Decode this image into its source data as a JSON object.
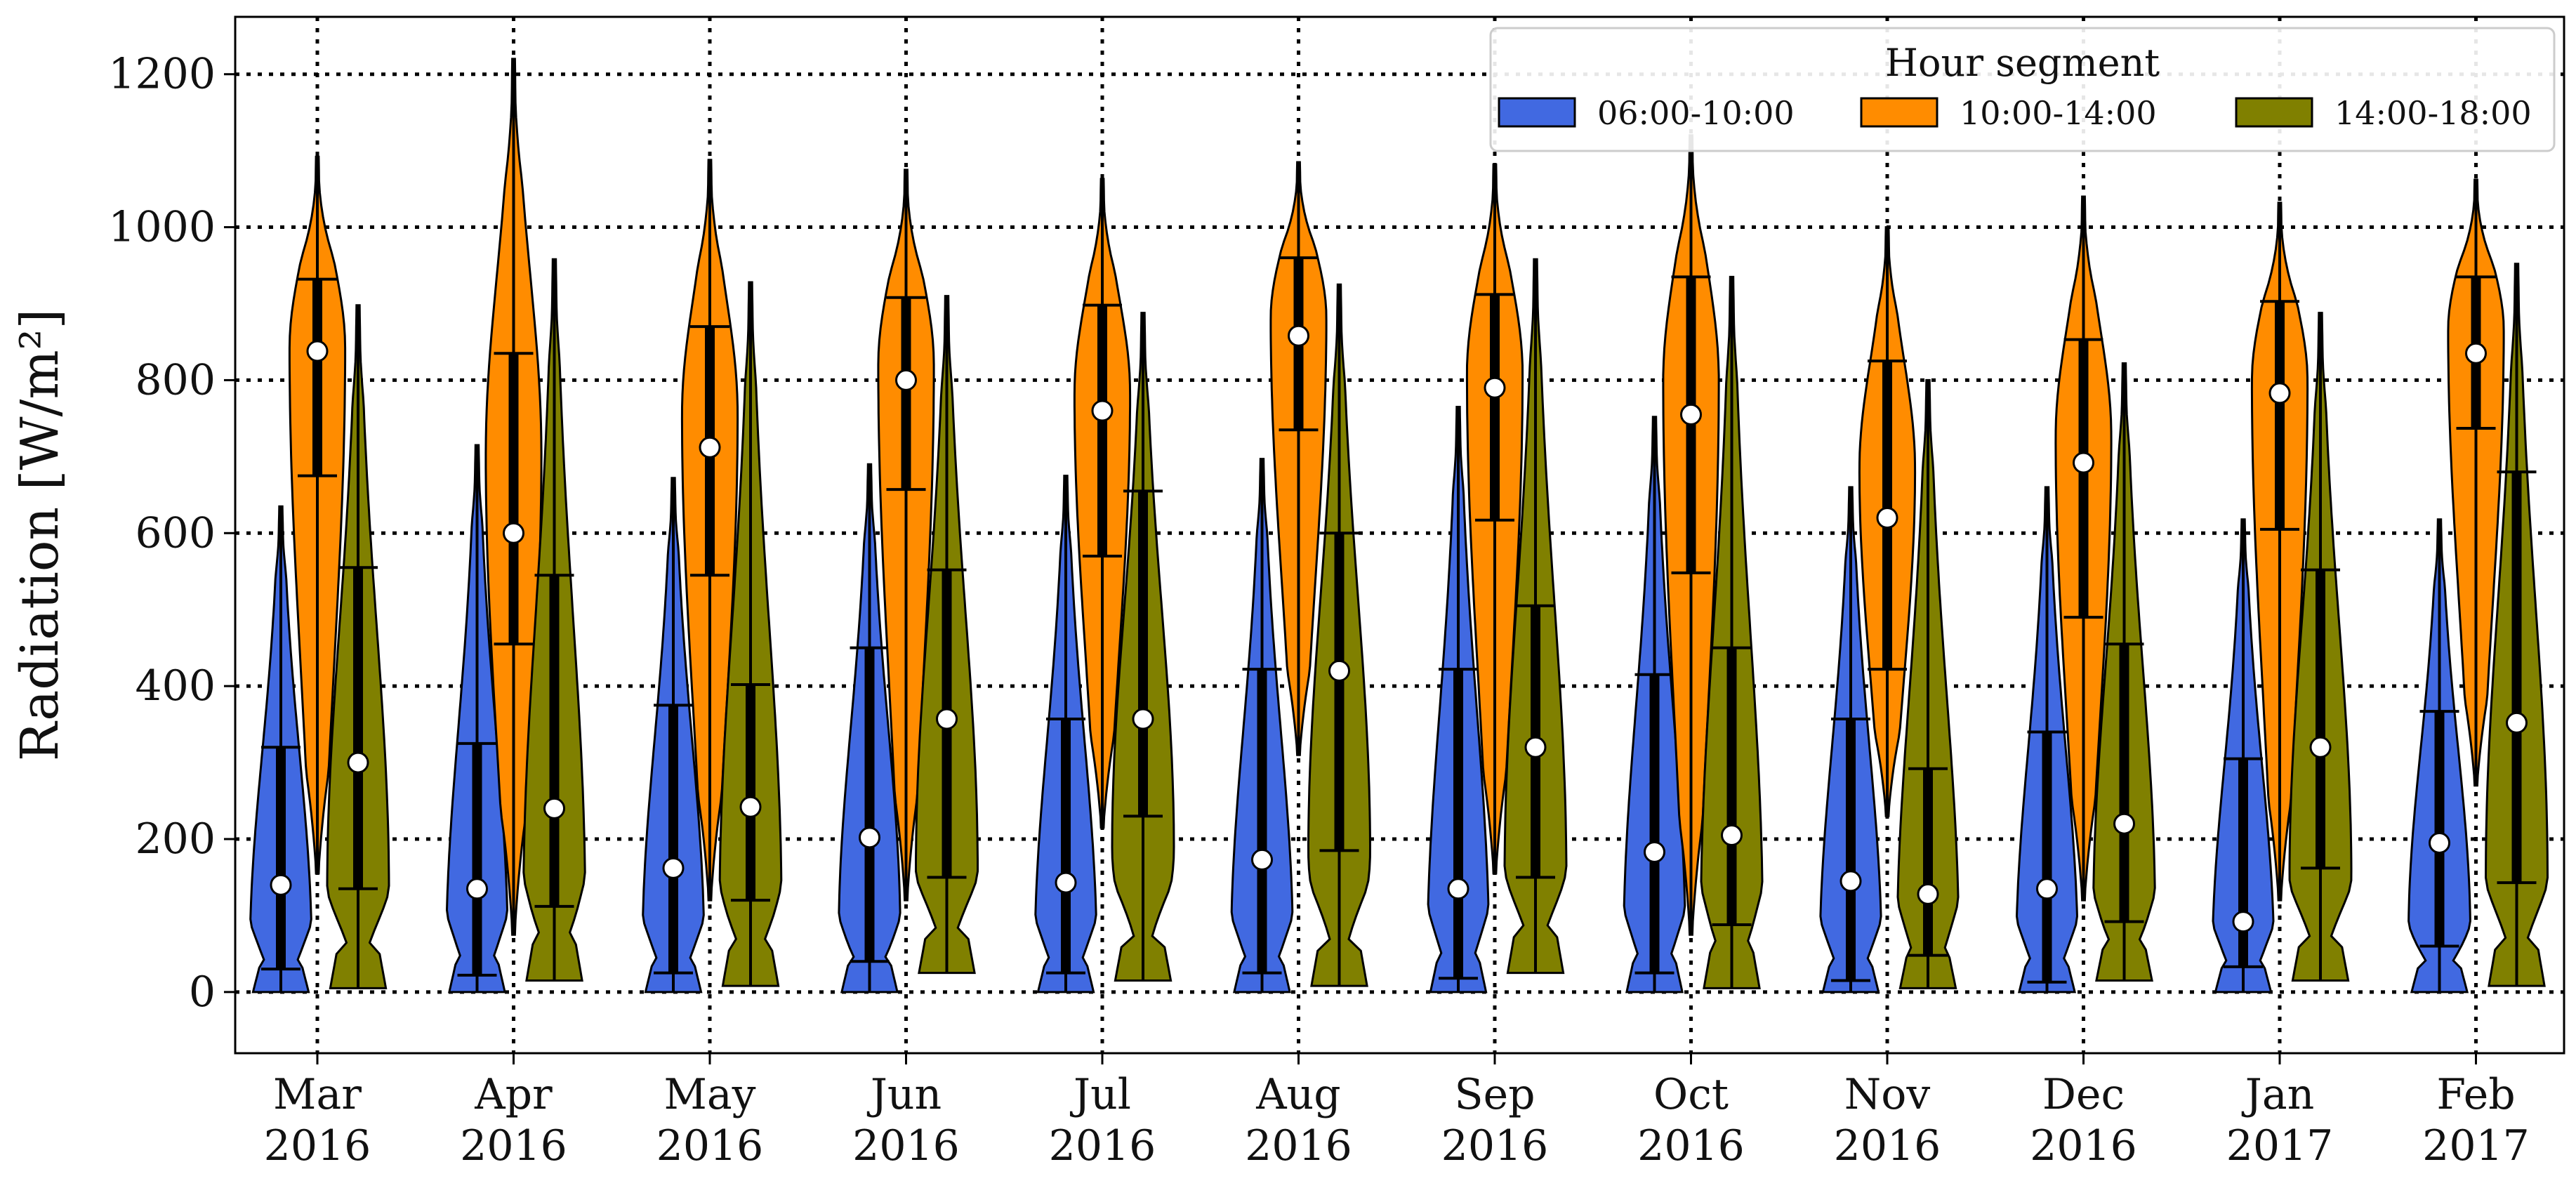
{
  "chart_data": {
    "type": "violin",
    "title": "",
    "xlabel": "",
    "ylabel": "Radiation [W/m²]",
    "ylim": [
      -80,
      1275
    ],
    "yticks": [
      0,
      200,
      400,
      600,
      800,
      1000,
      1200
    ],
    "ytick_labels": [
      "0",
      "200",
      "400",
      "600",
      "800",
      "1000",
      "1200"
    ],
    "grid": "dotted",
    "categories": [
      {
        "month": "Mar",
        "year": "2016"
      },
      {
        "month": "Apr",
        "year": "2016"
      },
      {
        "month": "May",
        "year": "2016"
      },
      {
        "month": "Jun",
        "year": "2016"
      },
      {
        "month": "Jul",
        "year": "2016"
      },
      {
        "month": "Aug",
        "year": "2016"
      },
      {
        "month": "Sep",
        "year": "2016"
      },
      {
        "month": "Oct",
        "year": "2016"
      },
      {
        "month": "Nov",
        "year": "2016"
      },
      {
        "month": "Dec",
        "year": "2016"
      },
      {
        "month": "Jan",
        "year": "2017"
      },
      {
        "month": "Feb",
        "year": "2017"
      }
    ],
    "legend": {
      "title": "Hour segment",
      "placement": "top-right"
    },
    "series": [
      {
        "name": "06:00-10:00",
        "color": "#4169e1",
        "stats": [
          {
            "min": 0,
            "q1": 30,
            "median": 140,
            "q3": 320,
            "max": 635
          },
          {
            "min": 0,
            "q1": 22,
            "median": 135,
            "q3": 325,
            "max": 715
          },
          {
            "min": 0,
            "q1": 25,
            "median": 162,
            "q3": 375,
            "max": 672
          },
          {
            "min": 0,
            "q1": 40,
            "median": 202,
            "q3": 450,
            "max": 690
          },
          {
            "min": 0,
            "q1": 25,
            "median": 143,
            "q3": 357,
            "max": 675
          },
          {
            "min": 0,
            "q1": 25,
            "median": 173,
            "q3": 422,
            "max": 697
          },
          {
            "min": 0,
            "q1": 18,
            "median": 135,
            "q3": 422,
            "max": 765
          },
          {
            "min": 0,
            "q1": 25,
            "median": 183,
            "q3": 415,
            "max": 752
          },
          {
            "min": 0,
            "q1": 15,
            "median": 145,
            "q3": 357,
            "max": 660
          },
          {
            "min": 0,
            "q1": 13,
            "median": 135,
            "q3": 340,
            "max": 660
          },
          {
            "min": 0,
            "q1": 33,
            "median": 92,
            "q3": 305,
            "max": 618
          },
          {
            "min": 0,
            "q1": 60,
            "median": 195,
            "q3": 367,
            "max": 618
          }
        ]
      },
      {
        "name": "10:00-14:00",
        "color": "#ff8c00",
        "stats": [
          {
            "min": 155,
            "q1": 675,
            "median": 838,
            "q3": 932,
            "max": 1092
          },
          {
            "min": 75,
            "q1": 455,
            "median": 600,
            "q3": 835,
            "max": 1220
          },
          {
            "min": 120,
            "q1": 545,
            "median": 712,
            "q3": 870,
            "max": 1088
          },
          {
            "min": 120,
            "q1": 657,
            "median": 800,
            "q3": 908,
            "max": 1075
          },
          {
            "min": 215,
            "q1": 570,
            "median": 760,
            "q3": 898,
            "max": 1063
          },
          {
            "min": 310,
            "q1": 735,
            "median": 858,
            "q3": 960,
            "max": 1085
          },
          {
            "min": 155,
            "q1": 617,
            "median": 790,
            "q3": 912,
            "max": 1082
          },
          {
            "min": 75,
            "q1": 548,
            "median": 755,
            "q3": 935,
            "max": 1120
          },
          {
            "min": 230,
            "q1": 422,
            "median": 620,
            "q3": 825,
            "max": 1000
          },
          {
            "min": 120,
            "q1": 490,
            "median": 692,
            "q3": 853,
            "max": 1040
          },
          {
            "min": 120,
            "q1": 605,
            "median": 783,
            "q3": 903,
            "max": 1032
          },
          {
            "min": 270,
            "q1": 737,
            "median": 835,
            "q3": 935,
            "max": 1062
          }
        ]
      },
      {
        "name": "14:00-18:00",
        "color": "#808000",
        "stats": [
          {
            "min": 5,
            "q1": 135,
            "median": 300,
            "q3": 555,
            "max": 898
          },
          {
            "min": 15,
            "q1": 112,
            "median": 240,
            "q3": 545,
            "max": 958
          },
          {
            "min": 8,
            "q1": 120,
            "median": 242,
            "q3": 402,
            "max": 928
          },
          {
            "min": 25,
            "q1": 150,
            "median": 357,
            "q3": 552,
            "max": 910
          },
          {
            "min": 15,
            "q1": 230,
            "median": 357,
            "q3": 655,
            "max": 888
          },
          {
            "min": 8,
            "q1": 185,
            "median": 420,
            "q3": 600,
            "max": 925
          },
          {
            "min": 25,
            "q1": 150,
            "median": 320,
            "q3": 505,
            "max": 958
          },
          {
            "min": 5,
            "q1": 88,
            "median": 205,
            "q3": 450,
            "max": 935
          },
          {
            "min": 5,
            "q1": 48,
            "median": 128,
            "q3": 292,
            "max": 800
          },
          {
            "min": 15,
            "q1": 92,
            "median": 220,
            "q3": 455,
            "max": 822
          },
          {
            "min": 15,
            "q1": 162,
            "median": 320,
            "q3": 552,
            "max": 888
          },
          {
            "min": 8,
            "q1": 143,
            "median": 352,
            "q3": 680,
            "max": 952
          }
        ]
      }
    ]
  }
}
